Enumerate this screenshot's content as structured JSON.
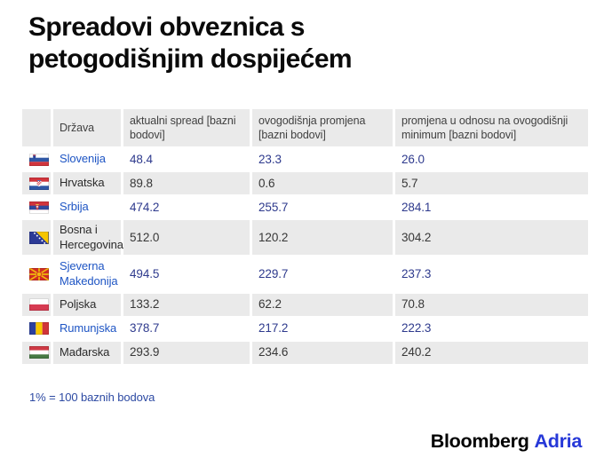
{
  "title": "Spreadovi obveznica s petogodišnjim dospijećem",
  "table": {
    "headers": {
      "country": "Država",
      "spread": "aktualni spread [bazni bodovi]",
      "change": "ovogodišnja promjena [bazni bodovi]",
      "change_min": "promjena u odnosu na ovogodišnji minimum [bazni bodovi]"
    },
    "rows": [
      {
        "icon": "flag-slovenia-icon",
        "country": "Slovenija",
        "spread": "48.4",
        "change": "23.3",
        "change_min": "26.0"
      },
      {
        "icon": "flag-croatia-icon",
        "country": "Hrvatska",
        "spread": "89.8",
        "change": "0.6",
        "change_min": "5.7"
      },
      {
        "icon": "flag-serbia-icon",
        "country": "Srbija",
        "spread": "474.2",
        "change": "255.7",
        "change_min": "284.1"
      },
      {
        "icon": "flag-bosnia-herzegovina-icon",
        "country": "Bosna i Hercegovina",
        "spread": "512.0",
        "change": "120.2",
        "change_min": "304.2"
      },
      {
        "icon": "flag-north-macedonia-icon",
        "country": "Sjeverna Makedonija",
        "spread": "494.5",
        "change": "229.7",
        "change_min": "237.3"
      },
      {
        "icon": "flag-poland-icon",
        "country": "Poljska",
        "spread": "133.2",
        "change": "62.2",
        "change_min": "70.8"
      },
      {
        "icon": "flag-romania-icon",
        "country": "Rumunjska",
        "spread": "378.7",
        "change": "217.2",
        "change_min": "222.3"
      },
      {
        "icon": "flag-hungary-icon",
        "country": "Mađarska",
        "spread": "293.9",
        "change": "234.6",
        "change_min": "240.2"
      }
    ]
  },
  "footnote": "1% = 100 baznih bodova",
  "logo": {
    "bloomberg": "Bloomberg",
    "adria": "Adria"
  },
  "colors": {
    "accent_blue": "#1e55c4",
    "value_navy": "#2e3a8d",
    "footnote_blue": "#2d4aa3",
    "logo_blue": "#2638d8",
    "row_gray": "#eaeaea"
  },
  "chart_data": {
    "type": "table",
    "title": "Spreadovi obveznica s petogodišnjim dospijećem",
    "columns": [
      "Država",
      "aktualni spread [bazni bodovi]",
      "ovogodišnja promjena [bazni bodovi]",
      "promjena u odnosu na ovogodišnji minimum [bazni bodovi]"
    ],
    "rows": [
      [
        "Slovenija",
        48.4,
        23.3,
        26.0
      ],
      [
        "Hrvatska",
        89.8,
        0.6,
        5.7
      ],
      [
        "Srbija",
        474.2,
        255.7,
        284.1
      ],
      [
        "Bosna i Hercegovina",
        512.0,
        120.2,
        304.2
      ],
      [
        "Sjeverna Makedonija",
        494.5,
        229.7,
        237.3
      ],
      [
        "Poljska",
        133.2,
        62.2,
        70.8
      ],
      [
        "Rumunjska",
        378.7,
        217.2,
        222.3
      ],
      [
        "Mađarska",
        293.9,
        234.6,
        240.2
      ]
    ],
    "note": "1% = 100 baznih bodova",
    "source": "Bloomberg Adria"
  }
}
